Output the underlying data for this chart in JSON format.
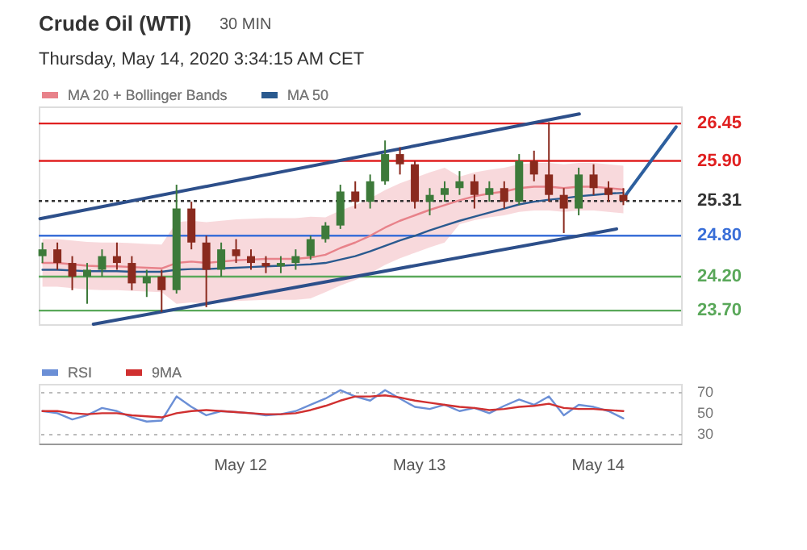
{
  "chart_data": [
    {
      "type": "candlestick",
      "title": "Crude Oil (WTI)",
      "subtitle": "Thursday, May 14, 2020 3:34:15 AM CET",
      "annotations": [
        "30 MIN"
      ],
      "x": [
        "2020-05-10T21:30",
        "2020-05-10T23:30",
        "2020-05-11T01:30",
        "2020-05-11T03:30",
        "2020-05-11T05:30",
        "2020-05-11T07:30",
        "2020-05-11T09:30",
        "2020-05-11T11:30",
        "2020-05-11T13:30",
        "2020-05-11T15:30",
        "2020-05-11T17:30",
        "2020-05-11T19:30",
        "2020-05-11T21:30",
        "2020-05-11T23:30",
        "2020-05-12T01:30",
        "2020-05-12T03:30",
        "2020-05-12T05:30",
        "2020-05-12T07:30",
        "2020-05-12T09:30",
        "2020-05-12T11:30",
        "2020-05-12T13:30",
        "2020-05-12T15:30",
        "2020-05-12T17:30",
        "2020-05-12T19:30",
        "2020-05-12T21:30",
        "2020-05-12T23:30",
        "2020-05-13T01:30",
        "2020-05-13T03:30",
        "2020-05-13T05:30",
        "2020-05-13T07:30",
        "2020-05-13T09:30",
        "2020-05-13T11:30",
        "2020-05-13T13:30",
        "2020-05-13T15:30",
        "2020-05-13T17:30",
        "2020-05-13T19:30",
        "2020-05-13T21:30",
        "2020-05-13T23:30",
        "2020-05-14T01:30",
        "2020-05-14T03:30"
      ],
      "ohlc": [
        [
          24.5,
          24.7,
          24.4,
          24.6
        ],
        [
          24.6,
          24.7,
          24.3,
          24.4
        ],
        [
          24.4,
          24.5,
          24.0,
          24.2
        ],
        [
          24.2,
          24.4,
          23.8,
          24.3
        ],
        [
          24.3,
          24.6,
          24.2,
          24.5
        ],
        [
          24.5,
          24.7,
          24.3,
          24.4
        ],
        [
          24.4,
          24.5,
          24.0,
          24.1
        ],
        [
          24.1,
          24.3,
          23.9,
          24.2
        ],
        [
          24.2,
          24.3,
          23.68,
          24.0
        ],
        [
          24.0,
          25.55,
          23.95,
          25.2
        ],
        [
          25.2,
          25.3,
          24.6,
          24.7
        ],
        [
          24.7,
          24.8,
          23.75,
          24.3
        ],
        [
          24.3,
          24.7,
          24.2,
          24.6
        ],
        [
          24.6,
          24.75,
          24.4,
          24.5
        ],
        [
          24.5,
          24.6,
          24.3,
          24.4
        ],
        [
          24.4,
          24.5,
          24.25,
          24.35
        ],
        [
          24.35,
          24.5,
          24.25,
          24.4
        ],
        [
          24.4,
          24.6,
          24.3,
          24.5
        ],
        [
          24.5,
          24.8,
          24.45,
          24.75
        ],
        [
          24.75,
          25.0,
          24.7,
          24.95
        ],
        [
          24.95,
          25.55,
          24.9,
          25.45
        ],
        [
          25.45,
          25.6,
          25.2,
          25.3
        ],
        [
          25.3,
          25.7,
          25.2,
          25.6
        ],
        [
          25.6,
          26.2,
          25.55,
          26.0
        ],
        [
          26.0,
          26.1,
          25.7,
          25.85
        ],
        [
          25.85,
          25.9,
          25.2,
          25.3
        ],
        [
          25.3,
          25.5,
          25.1,
          25.4
        ],
        [
          25.4,
          25.6,
          25.3,
          25.5
        ],
        [
          25.5,
          25.75,
          25.4,
          25.6
        ],
        [
          25.6,
          25.7,
          25.2,
          25.4
        ],
        [
          25.4,
          25.6,
          25.3,
          25.5
        ],
        [
          25.5,
          25.6,
          25.2,
          25.3
        ],
        [
          25.3,
          26.0,
          25.25,
          25.9
        ],
        [
          25.9,
          26.05,
          25.6,
          25.7
        ],
        [
          25.7,
          26.47,
          25.3,
          25.4
        ],
        [
          25.4,
          25.5,
          24.84,
          25.2
        ],
        [
          25.2,
          25.8,
          25.1,
          25.7
        ],
        [
          25.7,
          25.85,
          25.4,
          25.5
        ],
        [
          25.5,
          25.6,
          25.3,
          25.4
        ],
        [
          25.4,
          25.5,
          25.25,
          25.31
        ]
      ],
      "series": [
        {
          "type": "line",
          "name": "MA 20 + Bollinger Bands",
          "color": "#e8828a",
          "values": [
            24.4,
            24.4,
            24.38,
            24.36,
            24.35,
            24.35,
            24.34,
            24.33,
            24.32,
            24.4,
            24.42,
            24.4,
            24.42,
            24.44,
            24.45,
            24.46,
            24.46,
            24.46,
            24.48,
            24.52,
            24.62,
            24.7,
            24.8,
            24.92,
            25.02,
            25.1,
            25.18,
            25.25,
            25.32,
            25.38,
            25.42,
            25.45,
            25.5,
            25.52,
            25.52,
            25.5,
            25.52,
            25.52,
            25.5,
            25.48
          ],
          "upper": [
            24.75,
            24.75,
            24.73,
            24.71,
            24.7,
            24.7,
            24.69,
            24.68,
            24.67,
            25.0,
            25.02,
            25.0,
            25.02,
            25.04,
            25.05,
            25.06,
            25.06,
            25.06,
            25.08,
            25.07,
            25.17,
            25.25,
            25.35,
            25.47,
            25.57,
            25.65,
            25.73,
            25.8,
            25.67,
            25.73,
            25.77,
            25.8,
            25.85,
            25.87,
            25.87,
            25.85,
            25.87,
            25.87,
            25.85,
            25.83
          ],
          "lower": [
            24.05,
            24.05,
            24.03,
            24.01,
            24.0,
            24.0,
            23.99,
            23.98,
            23.97,
            23.8,
            23.82,
            23.8,
            23.82,
            23.84,
            23.85,
            23.86,
            23.86,
            23.86,
            23.88,
            23.97,
            24.07,
            24.15,
            24.25,
            24.37,
            24.47,
            24.55,
            24.63,
            24.7,
            24.97,
            25.03,
            25.07,
            25.1,
            25.15,
            25.17,
            25.17,
            25.15,
            25.17,
            25.17,
            25.15,
            25.13
          ]
        },
        {
          "type": "line",
          "name": "MA 50",
          "color": "#2a5a8f",
          "values": [
            24.3,
            24.3,
            24.29,
            24.28,
            24.28,
            24.28,
            24.27,
            24.27,
            24.27,
            24.3,
            24.31,
            24.31,
            24.32,
            24.33,
            24.34,
            24.35,
            24.36,
            24.37,
            24.38,
            24.4,
            24.45,
            24.5,
            24.57,
            24.65,
            24.73,
            24.8,
            24.88,
            24.95,
            25.02,
            25.08,
            25.14,
            25.2,
            25.26,
            25.3,
            25.33,
            25.35,
            25.38,
            25.4,
            25.42,
            25.43
          ]
        },
        {
          "type": "line",
          "color": "#2d4f8a",
          "x": [
            "2020-05-10T21:10",
            "2020-05-13T21:35"
          ],
          "values": [
            25.05,
            26.59
          ]
        },
        {
          "type": "line",
          "color": "#2d4f8a",
          "x": [
            "2020-05-11T04:20",
            "2020-05-14T02:35"
          ],
          "values": [
            23.5,
            24.9
          ]
        },
        {
          "type": "line",
          "color": "#2d5f9e",
          "x": [
            "2020-05-14T03:30",
            "2020-05-14T10:35"
          ],
          "values": [
            25.35,
            26.4
          ]
        }
      ],
      "ref_lines": [
        {
          "axis": "y",
          "value": 26.45,
          "label": null,
          "color": "#e02020"
        },
        {
          "axis": "y",
          "value": 25.9,
          "label": null,
          "color": "#e02020"
        },
        {
          "axis": "y",
          "value": 25.31,
          "label": null,
          "color": "#333333",
          "line_style": "dotted"
        },
        {
          "axis": "y",
          "value": 24.8,
          "label": null,
          "color": "#3a6fd8"
        },
        {
          "axis": "y",
          "value": 24.2,
          "label": null,
          "color": "#5aa85a"
        },
        {
          "axis": "y",
          "value": 23.7,
          "label": null,
          "color": "#5aa85a"
        }
      ],
      "xlim": [
        "2020-05-10T21:00",
        "2020-05-14T11:15"
      ],
      "ylim": [
        23.5,
        26.7
      ],
      "yticks": [
        {
          "value": 23.7,
          "label": "23.70"
        },
        {
          "value": 24.2,
          "label": "24.20"
        },
        {
          "value": 24.8,
          "label": "24.80"
        },
        25.31,
        {
          "value": 25.9,
          "label": "25.90"
        },
        26.45
      ],
      "tick_labels": "y",
      "grid": false,
      "legend": "top left"
    },
    {
      "type": "line",
      "x": [
        "2020-05-10T21:30",
        "2020-05-10T23:30",
        "2020-05-11T01:30",
        "2020-05-11T03:30",
        "2020-05-11T05:30",
        "2020-05-11T07:30",
        "2020-05-11T09:30",
        "2020-05-11T11:30",
        "2020-05-11T13:30",
        "2020-05-11T15:30",
        "2020-05-11T17:30",
        "2020-05-11T19:30",
        "2020-05-11T21:30",
        "2020-05-11T23:30",
        "2020-05-12T01:30",
        "2020-05-12T03:30",
        "2020-05-12T05:30",
        "2020-05-12T07:30",
        "2020-05-12T09:30",
        "2020-05-12T11:30",
        "2020-05-12T13:30",
        "2020-05-12T15:30",
        "2020-05-12T17:30",
        "2020-05-12T19:30",
        "2020-05-12T21:30",
        "2020-05-12T23:30",
        "2020-05-13T01:30",
        "2020-05-13T03:30",
        "2020-05-13T05:30",
        "2020-05-13T07:30",
        "2020-05-13T09:30",
        "2020-05-13T11:30",
        "2020-05-13T13:30",
        "2020-05-13T15:30",
        "2020-05-13T17:30",
        "2020-05-13T19:30",
        "2020-05-13T21:30",
        "2020-05-13T23:30",
        "2020-05-14T01:30",
        "2020-05-14T03:30"
      ],
      "series": [
        {
          "name": "RSI",
          "color": "#6b8fd6",
          "values": [
            52,
            50,
            44,
            48,
            55,
            52,
            46,
            42,
            43,
            66,
            56,
            48,
            52,
            51,
            50,
            48,
            49,
            52,
            58,
            64,
            72,
            66,
            62,
            72,
            64,
            56,
            54,
            58,
            52,
            55,
            50,
            57,
            63,
            58,
            66,
            48,
            58,
            56,
            52,
            45
          ]
        },
        {
          "name": "9MA",
          "color": "#d03030",
          "values": [
            52,
            52,
            50,
            49,
            50,
            50,
            48,
            47,
            46,
            50,
            52,
            53,
            52,
            51,
            50,
            49,
            49,
            50,
            53,
            57,
            62,
            66,
            66,
            67,
            65,
            62,
            60,
            58,
            56,
            55,
            53,
            54,
            56,
            57,
            59,
            55,
            54,
            54,
            53,
            52
          ]
        }
      ],
      "xlim": [
        "2020-05-10T21:00",
        "2020-05-14T11:15"
      ],
      "xticks": [
        {
          "value": "2020-05-12",
          "label": "May 12"
        },
        {
          "value": "2020-05-13",
          "label": "May 13"
        },
        {
          "value": "2020-05-14",
          "label": "May 14"
        }
      ],
      "ylim": [
        21,
        78
      ],
      "yticks": [
        30,
        50,
        70
      ],
      "grid": "y",
      "legend": "top left",
      "line_style": "solid"
    }
  ]
}
